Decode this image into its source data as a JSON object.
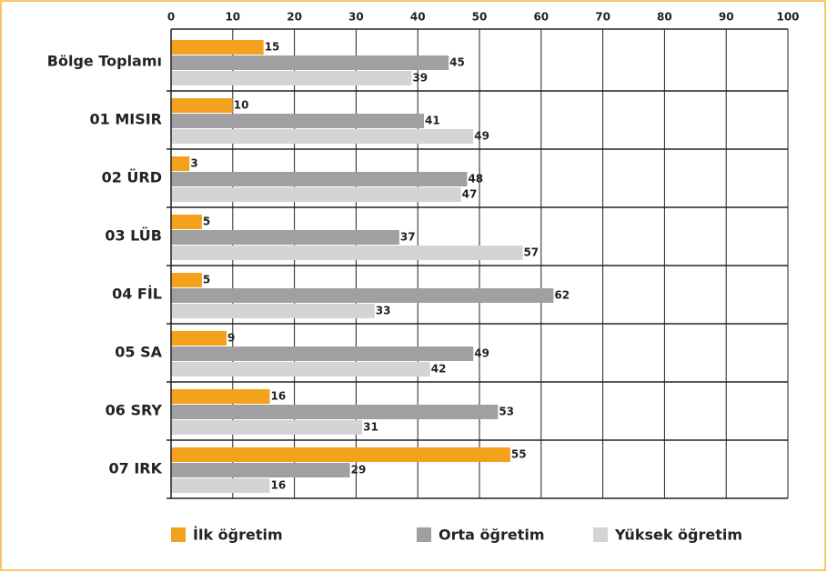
{
  "chart_data": {
    "type": "hbar",
    "categories": [
      "Bölge Toplamı",
      "01 MISIR",
      "02 ÜRD",
      "03 LÜB",
      "04 FİL",
      "05 SA",
      "06 SRY",
      "07 IRK"
    ],
    "series": [
      {
        "name": "İlk öğretim",
        "color": "#f4a11d",
        "values": [
          15,
          10,
          3,
          5,
          5,
          9,
          16,
          55
        ]
      },
      {
        "name": "Orta öğretim",
        "color": "#a0a0a2",
        "values": [
          45,
          41,
          48,
          37,
          62,
          49,
          53,
          29
        ]
      },
      {
        "name": "Yüksek öğretim",
        "color": "#d3d4d6",
        "values": [
          39,
          49,
          47,
          57,
          33,
          42,
          31,
          16
        ]
      }
    ],
    "xlim": [
      0,
      100
    ],
    "xticks": [
      0,
      10,
      20,
      30,
      40,
      50,
      60,
      70,
      80,
      90,
      100
    ],
    "grid": true
  }
}
